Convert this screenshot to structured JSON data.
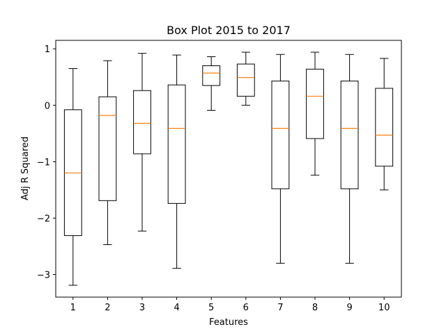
{
  "chart_data": {
    "type": "box",
    "title": "Box Plot 2015 to 2017",
    "xlabel": "Features",
    "ylabel": "Adj R Squared",
    "categories": [
      "1",
      "2",
      "3",
      "4",
      "5",
      "6",
      "7",
      "8",
      "9",
      "10"
    ],
    "ylim": [
      -3.4,
      1.15
    ],
    "yticks": [
      1,
      0,
      -1,
      -2,
      -3
    ],
    "ytick_labels": [
      "1",
      "0",
      "−1",
      "−2",
      "−3"
    ],
    "grid": false,
    "colors": {
      "box": "#000000",
      "median": "#ff7f0e"
    },
    "boxes": [
      {
        "whisker_low": -3.19,
        "q1": -2.31,
        "median": -1.2,
        "q3": -0.08,
        "whisker_high": 0.65
      },
      {
        "whisker_low": -2.47,
        "q1": -1.69,
        "median": -0.18,
        "q3": 0.15,
        "whisker_high": 0.79
      },
      {
        "whisker_low": -2.23,
        "q1": -0.86,
        "median": -0.32,
        "q3": 0.26,
        "whisker_high": 0.92
      },
      {
        "whisker_low": -2.89,
        "q1": -1.74,
        "median": -0.41,
        "q3": 0.36,
        "whisker_high": 0.89
      },
      {
        "whisker_low": -0.09,
        "q1": 0.35,
        "median": 0.57,
        "q3": 0.7,
        "whisker_high": 0.86
      },
      {
        "whisker_low": 0.0,
        "q1": 0.16,
        "median": 0.49,
        "q3": 0.73,
        "whisker_high": 0.94
      },
      {
        "whisker_low": -2.8,
        "q1": -1.48,
        "median": -0.41,
        "q3": 0.43,
        "whisker_high": 0.9
      },
      {
        "whisker_low": -1.24,
        "q1": -0.59,
        "median": 0.16,
        "q3": 0.64,
        "whisker_high": 0.94
      },
      {
        "whisker_low": -2.8,
        "q1": -1.48,
        "median": -0.41,
        "q3": 0.43,
        "whisker_high": 0.9
      },
      {
        "whisker_low": -1.5,
        "q1": -1.08,
        "median": -0.53,
        "q3": 0.3,
        "whisker_high": 0.83
      }
    ]
  }
}
